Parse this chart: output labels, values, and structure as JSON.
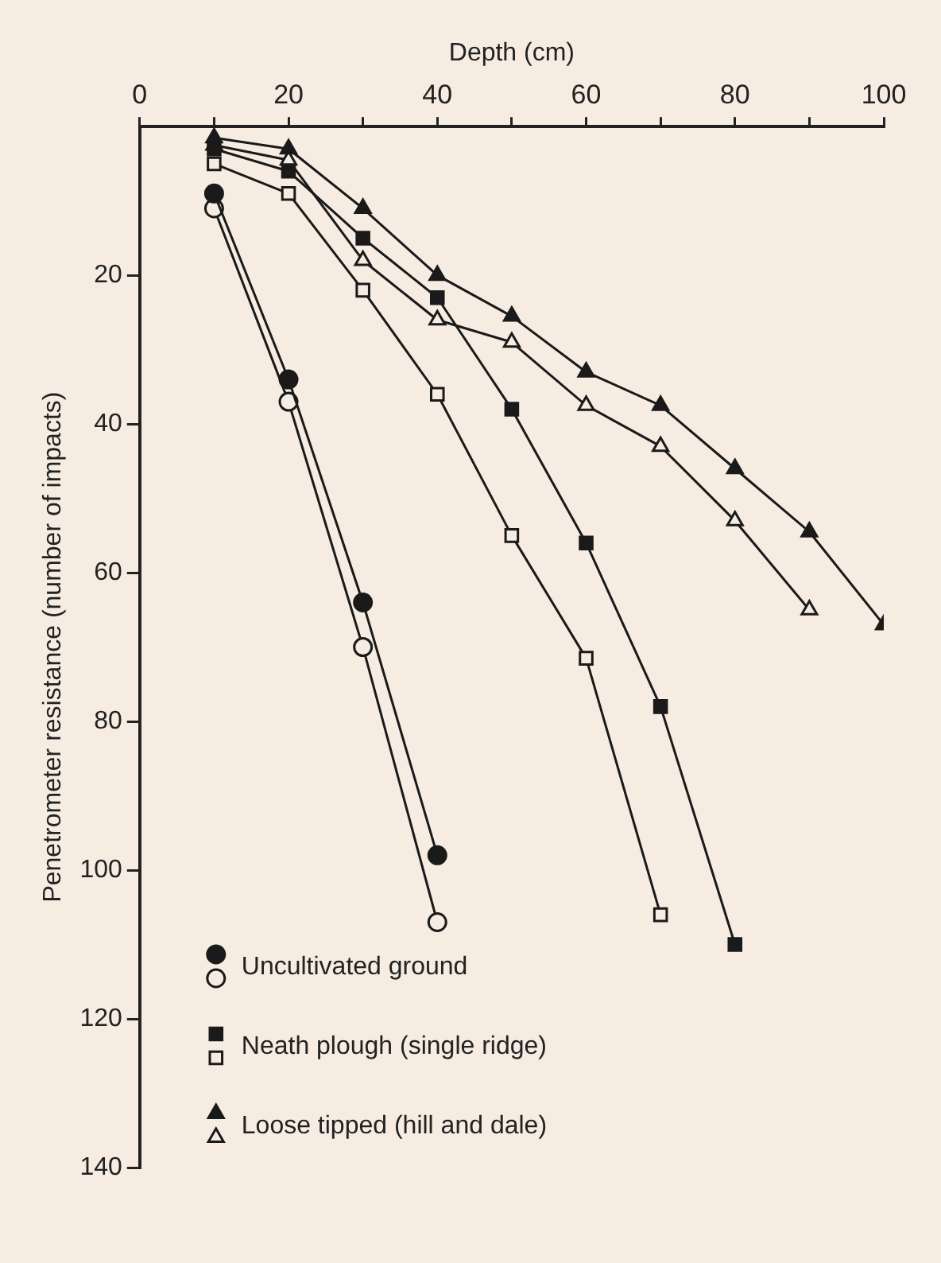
{
  "chart_data": {
    "type": "line",
    "xlabel": "Depth (cm)",
    "ylabel": "Penetrometer resistance (number of impacts)",
    "xlim": [
      0,
      100
    ],
    "xticks": [
      0,
      {
        "value": 10,
        "label": null
      },
      20,
      {
        "value": 30,
        "label": null
      },
      40,
      {
        "value": 50,
        "label": null
      },
      60,
      {
        "value": 70,
        "label": null
      },
      80,
      {
        "value": 90,
        "label": null
      },
      100
    ],
    "ylim": [
      140,
      0
    ],
    "yticks": [
      20,
      40,
      60,
      80,
      100,
      120,
      140
    ],
    "grid": false,
    "legend": "bottom left",
    "line_style": "solid",
    "series": [
      {
        "name": "Uncultivated ground",
        "color": "#1a1a1a",
        "marker": "circle",
        "x": [
          10,
          20,
          30,
          40
        ],
        "values": [
          9,
          34,
          64,
          98
        ]
      },
      {
        "color": "#1a1a1a",
        "marker": "circle",
        "x": [
          10,
          20,
          30,
          40
        ],
        "values": [
          11,
          37,
          70,
          107
        ]
      },
      {
        "name": "Neath plough (single ridge)",
        "color": "#1a1a1a",
        "marker": "square",
        "x": [
          10,
          20,
          30,
          40,
          50,
          60,
          70,
          80
        ],
        "values": [
          3,
          6,
          15,
          23,
          38,
          56,
          78,
          110
        ]
      },
      {
        "color": "#1a1a1a",
        "marker": "square",
        "x": [
          10,
          20,
          30,
          40,
          50,
          60,
          70
        ],
        "values": [
          5,
          9,
          22,
          36,
          55,
          71.5,
          106
        ]
      },
      {
        "name": "Loose tipped (hill and dale)",
        "color": "#1a1a1a",
        "marker": "triangle",
        "x": [
          10,
          20,
          30,
          40,
          50,
          60,
          70,
          80,
          90,
          100
        ],
        "values": [
          1.5,
          3,
          11,
          20,
          25.5,
          33,
          37.5,
          46,
          54.5,
          67
        ]
      },
      {
        "color": "#1a1a1a",
        "marker": "triangle",
        "x": [
          10,
          20,
          30,
          40,
          50,
          60,
          70,
          80,
          90
        ],
        "values": [
          2.5,
          4.5,
          18,
          26,
          29,
          37.5,
          43,
          53,
          65
        ]
      }
    ]
  }
}
